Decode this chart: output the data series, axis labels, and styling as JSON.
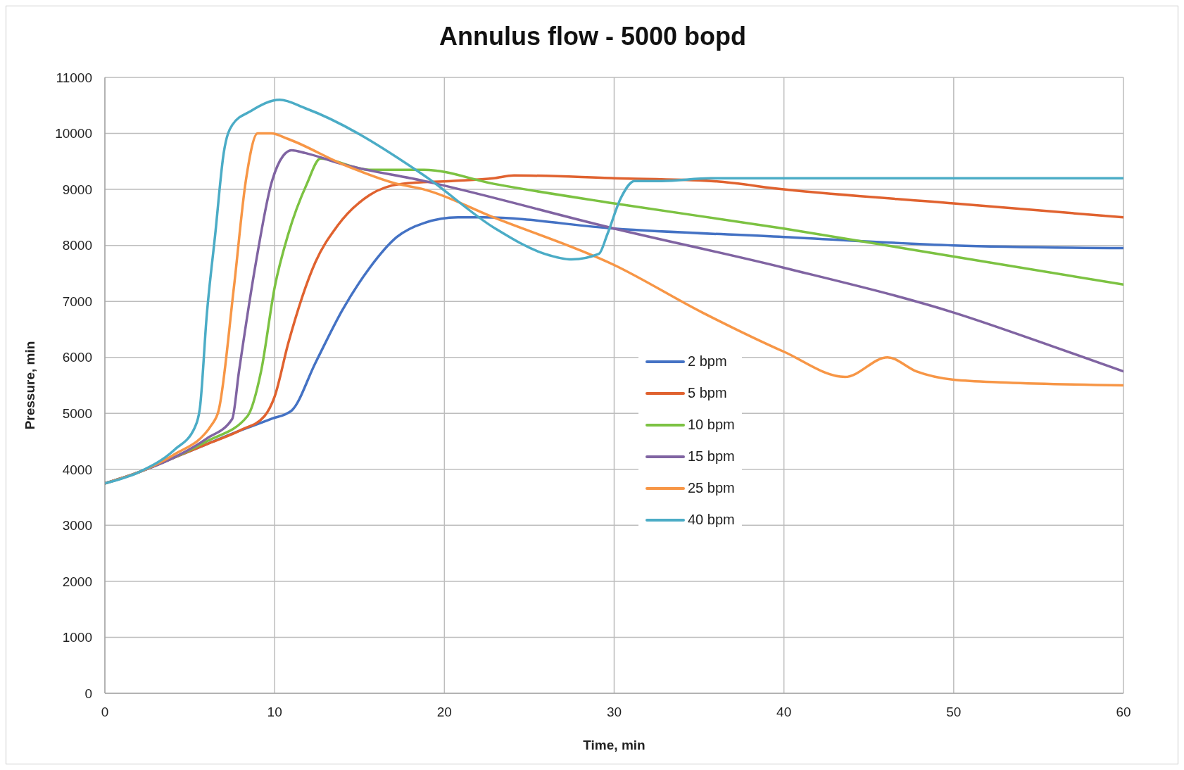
{
  "chart_data": {
    "type": "line",
    "title": "Annulus flow - 5000 bopd",
    "xlabel": "Time, min",
    "ylabel": "Pressure, min",
    "xlim": [
      0,
      60
    ],
    "xticks": [
      0,
      10,
      20,
      30,
      40,
      50,
      60
    ],
    "ylim": [
      0,
      11000
    ],
    "yticks": [
      0,
      1000,
      2000,
      3000,
      4000,
      5000,
      6000,
      7000,
      8000,
      9000,
      10000,
      11000
    ],
    "grid": true,
    "legend": "center",
    "marker": "none",
    "line_style": "solid",
    "series": [
      {
        "name": "2 bpm",
        "color": "#4472c4",
        "x": [
          0,
          2,
          4,
          6,
          7.6,
          9.8,
          11,
          12.4,
          14,
          15.6,
          17.2,
          18.8,
          20.8,
          22.3,
          30,
          40,
          50,
          60
        ],
        "values": [
          3750,
          3950,
          4200,
          4450,
          4650,
          4900,
          5050,
          5900,
          6850,
          7600,
          8150,
          8400,
          8500,
          8500,
          8300,
          8150,
          8000,
          7950
        ]
      },
      {
        "name": "5 bpm",
        "color": "#e0622f",
        "x": [
          0,
          2,
          4,
          6,
          8,
          9.4,
          10,
          10.8,
          12.4,
          13.7,
          15.6,
          17.5,
          20.4,
          22.9,
          24.1,
          30,
          35.7,
          40,
          50,
          60
        ],
        "values": [
          3750,
          3950,
          4200,
          4450,
          4700,
          4950,
          5300,
          6250,
          7700,
          8350,
          8900,
          9100,
          9150,
          9200,
          9250,
          9200,
          9150,
          9000,
          8750,
          8500
        ]
      },
      {
        "name": "10 bpm",
        "color": "#7cc242",
        "x": [
          0,
          2,
          4,
          6,
          8.4,
          9.2,
          10,
          10.8,
          11.9,
          12.7,
          15.6,
          18.8,
          22.9,
          30,
          40,
          50,
          60
        ],
        "values": [
          3750,
          3950,
          4200,
          4500,
          4950,
          5750,
          7250,
          8200,
          9100,
          9550,
          9350,
          9350,
          9100,
          8750,
          8300,
          7800,
          7300
        ]
      },
      {
        "name": "15 bpm",
        "color": "#8064a2",
        "x": [
          0,
          2,
          4,
          6,
          7.5,
          7.9,
          8.9,
          9.8,
          10.5,
          11,
          11.8,
          14,
          18.8,
          30,
          40,
          50,
          55.8,
          60
        ],
        "values": [
          3750,
          3950,
          4200,
          4550,
          4900,
          5750,
          7700,
          9100,
          9600,
          9700,
          9650,
          9450,
          9150,
          8300,
          7600,
          6800,
          6200,
          5750
        ]
      },
      {
        "name": "25 bpm",
        "color": "#f79646",
        "x": [
          0,
          2,
          4,
          6.3,
          6.7,
          7.6,
          8.3,
          9,
          9.8,
          10.8,
          14,
          17.2,
          18.8,
          22.9,
          30,
          35.2,
          40,
          43.6,
          46.1,
          47.8,
          50,
          53.1,
          60
        ],
        "values": [
          3750,
          3950,
          4250,
          4800,
          5050,
          7250,
          9150,
          10000,
          10000,
          9900,
          9450,
          9100,
          9000,
          8500,
          7650,
          6800,
          6100,
          5650,
          6000,
          5750,
          5600,
          5550,
          5500
        ]
      },
      {
        "name": "40 bpm",
        "color": "#4bacc6",
        "x": [
          0,
          2,
          4.1,
          5.3,
          5.6,
          6,
          6.5,
          7,
          7.5,
          8.6,
          10.3,
          11.8,
          18.8,
          23,
          25.9,
          27.5,
          29.1,
          29.6,
          30.4,
          31.2,
          32.8,
          35.7,
          40,
          60
        ],
        "values": [
          3750,
          3950,
          4350,
          4750,
          5100,
          6750,
          8200,
          9650,
          10150,
          10400,
          10600,
          10450,
          9250,
          8300,
          7850,
          7750,
          7850,
          8200,
          8850,
          9150,
          9150,
          9200,
          9200,
          9200
        ]
      }
    ]
  }
}
